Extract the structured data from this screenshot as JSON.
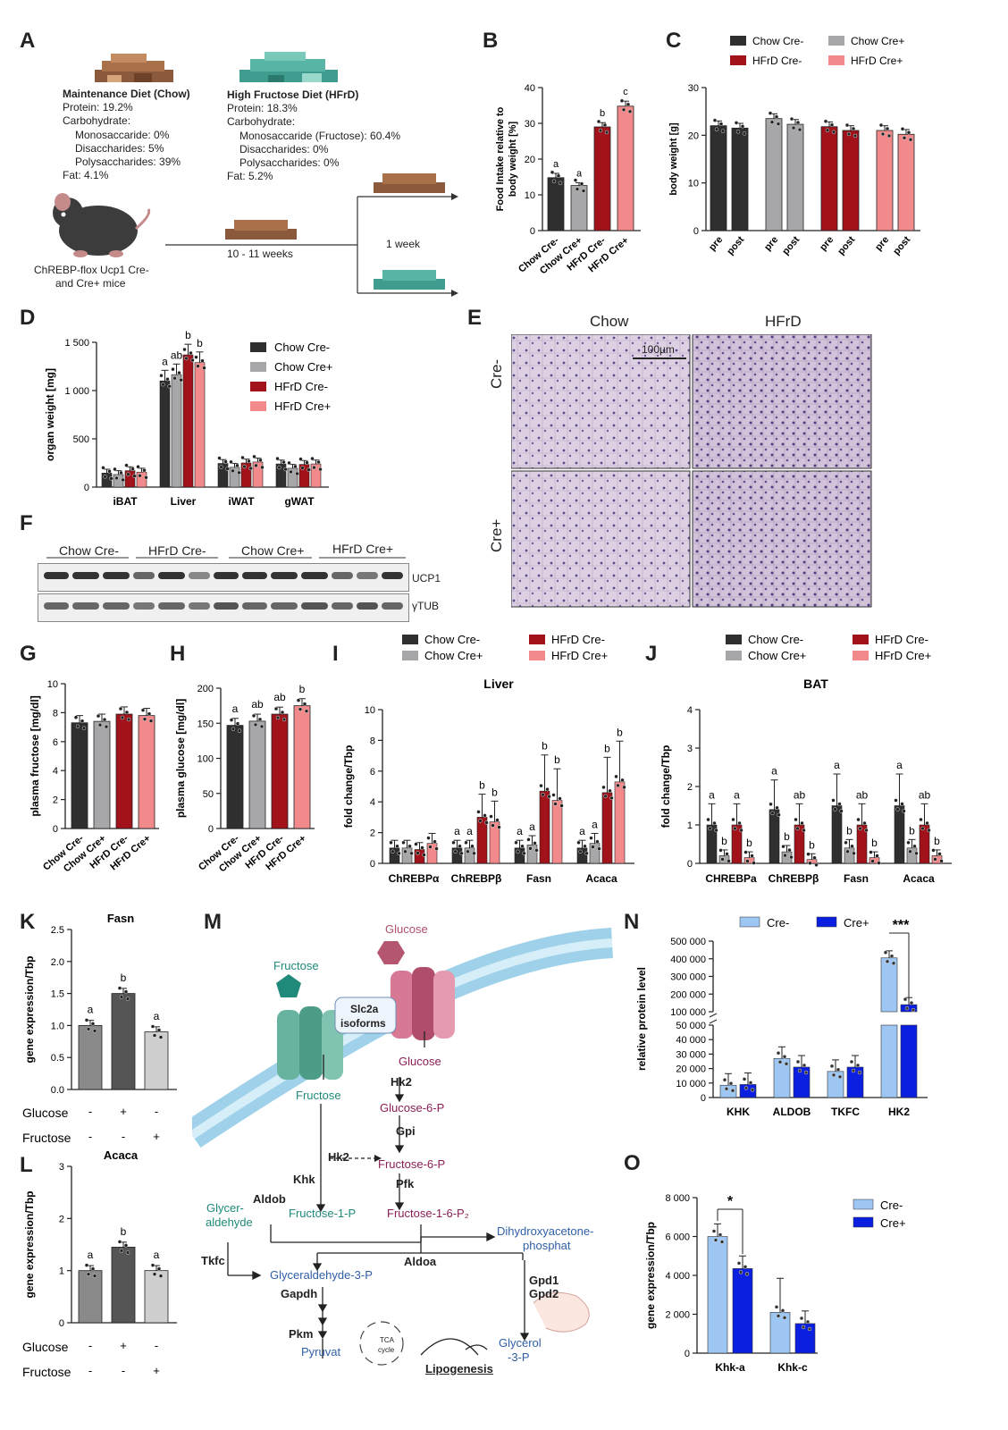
{
  "panels": {
    "A": "A",
    "B": "B",
    "C": "C",
    "D": "D",
    "E": "E",
    "F": "F",
    "G": "G",
    "H": "H",
    "I": "I",
    "J": "J",
    "K": "K",
    "L": "L",
    "M": "M",
    "N": "N",
    "O": "O"
  },
  "colors": {
    "chow_cre_minus": "#2f2f2f",
    "chow_cre_plus": "#a7a7a9",
    "hfrd_cre_minus": "#a1121a",
    "hfrd_cre_plus": "#f2898b",
    "cre_minus_light": "#9dc6f2",
    "cre_plus_blue": "#0b1fe0",
    "kl_bar1": "#8a8a8a",
    "kl_bar2": "#555555",
    "kl_bar3": "#cfcfcf"
  },
  "panelA": {
    "chow": {
      "title": "Maintenance Diet (Chow)",
      "lines": [
        "Protein: 19.2%",
        "Carbohydrate:",
        "Monosaccaride: 0%",
        "Disaccharides: 5%",
        "Polysaccharides: 39%",
        "Fat: 4.1%"
      ]
    },
    "hfrd": {
      "title": "High Fructose Diet (HFrD)",
      "lines": [
        "Protein: 18.3%",
        "Carbohydrate:",
        "Monosaccaride (Fructose): 60.4%",
        "Disaccharides: 0%",
        "Polysaccharides: 0%",
        "Fat: 5.2%"
      ]
    },
    "mouse_label_1": "ChREBP-flox Ucp1 Cre-",
    "mouse_label_2": "and Cre+ mice",
    "duration": "10 - 11 weeks",
    "week": "1 week"
  },
  "legend4": [
    "Chow Cre-",
    "Chow Cre+",
    "HFrD Cre-",
    "HFrD Cre+"
  ],
  "legend2": [
    "Cre-",
    "Cre+"
  ],
  "chart_data": [
    {
      "id": "B",
      "type": "bar",
      "categories": [
        "Chow Cre-",
        "Chow Cre+",
        "HFrD Cre-",
        "HFrD Cre+"
      ],
      "values": [
        14.8,
        12.6,
        29,
        34.8
      ],
      "errors": [
        1.2,
        0.8,
        1.2,
        1.4
      ],
      "letters": [
        "a",
        "a",
        "b",
        "c"
      ],
      "ylabel": "Food Intake relative to body weight [%]",
      "ylim": [
        0,
        40
      ],
      "yticks": [
        "0",
        "10",
        "20",
        "30",
        "40"
      ]
    },
    {
      "id": "C",
      "type": "bar",
      "categories": [
        "pre",
        "post",
        "pre",
        "post",
        "pre",
        "post",
        "pre",
        "post"
      ],
      "values": [
        22,
        21.5,
        23.5,
        22.3,
        21.8,
        21,
        21,
        20.2
      ],
      "groups": [
        "Chow Cre-",
        "Chow Cre+",
        "HFrD Cre-",
        "HFrD Cre+"
      ],
      "ylabel": "body weight [g]",
      "ylim": [
        0,
        30
      ],
      "yticks": [
        "0",
        "10",
        "20",
        "30"
      ]
    },
    {
      "id": "D",
      "type": "bar",
      "categories": [
        "iBAT",
        "Liver",
        "iWAT",
        "gWAT"
      ],
      "series": [
        {
          "name": "Chow Cre-",
          "values": [
            145,
            1100,
            245,
            240
          ]
        },
        {
          "name": "Chow Cre+",
          "values": [
            130,
            1165,
            205,
            195
          ]
        },
        {
          "name": "HFrD Cre-",
          "values": [
            170,
            1370,
            250,
            235
          ]
        },
        {
          "name": "HFrD Cre+",
          "values": [
            155,
            1290,
            260,
            240
          ]
        }
      ],
      "letters": {
        "Liver": [
          "a",
          "ab",
          "b",
          "b"
        ]
      },
      "ylabel": "organ weight [mg]",
      "ylim": [
        0,
        1500
      ],
      "yticks": [
        "0",
        "500",
        "1 000",
        "1 500"
      ]
    },
    {
      "id": "G",
      "type": "bar",
      "categories": [
        "Chow Cre-",
        "Chow Cre+",
        "HFrD Cre-",
        "HFrD Cre+"
      ],
      "values": [
        7.3,
        7.4,
        7.9,
        7.8
      ],
      "ylabel": "plasma fructose [mg/dl]",
      "ylim": [
        0,
        10
      ],
      "yticks": [
        "0",
        "2",
        "4",
        "6",
        "8",
        "10"
      ]
    },
    {
      "id": "H",
      "type": "bar",
      "categories": [
        "Chow Cre-",
        "Chow Cre+",
        "HFrD Cre-",
        "HFrD Cre+"
      ],
      "values": [
        147,
        153,
        163,
        175
      ],
      "letters": [
        "a",
        "ab",
        "ab",
        "b"
      ],
      "ylabel": "plasma glucose [mg/dl]",
      "ylim": [
        0,
        200
      ],
      "yticks": [
        "0",
        "50",
        "100",
        "150",
        "200"
      ]
    },
    {
      "id": "I",
      "type": "bar",
      "title": "Liver",
      "categories": [
        "ChREBPα",
        "ChREBPβ",
        "Fasn",
        "Acaca"
      ],
      "series": [
        {
          "name": "Chow Cre-",
          "values": [
            1,
            1,
            1,
            1
          ]
        },
        {
          "name": "Chow Cre+",
          "values": [
            1,
            1,
            1.2,
            1.3
          ]
        },
        {
          "name": "HFrD Cre-",
          "values": [
            0.9,
            3,
            4.7,
            4.6
          ]
        },
        {
          "name": "HFrD Cre+",
          "values": [
            1.3,
            2.7,
            4.1,
            5.3
          ]
        }
      ],
      "letters": {
        "ChREBPβ": [
          "a",
          "a",
          "b",
          "b"
        ],
        "Fasn": [
          "a",
          "a",
          "b",
          "b"
        ],
        "Acaca": [
          "a",
          "a",
          "b",
          "b"
        ]
      },
      "ylabel": "fold change/Tbp",
      "ylim": [
        0,
        10
      ],
      "yticks": [
        "0",
        "2",
        "4",
        "6",
        "8",
        "10"
      ]
    },
    {
      "id": "J",
      "type": "bar",
      "title": "BAT",
      "categories": [
        "CHREBPa",
        "ChREBPβ",
        "Fasn",
        "Acaca"
      ],
      "series": [
        {
          "name": "Chow Cre-",
          "values": [
            1,
            1.4,
            1.5,
            1.5
          ]
        },
        {
          "name": "Chow Cre+",
          "values": [
            0.2,
            0.3,
            0.4,
            0.4
          ]
        },
        {
          "name": "HFrD Cre-",
          "values": [
            1,
            1,
            1,
            1
          ]
        },
        {
          "name": "HFrD Cre+",
          "values": [
            0.15,
            0.1,
            0.15,
            0.2
          ]
        }
      ],
      "letters": {
        "CHREBPa": [
          "a",
          "b",
          "a",
          "b"
        ],
        "ChREBPβ": [
          "a",
          "b",
          "ab",
          "b"
        ],
        "Fasn": [
          "a",
          "b",
          "ab",
          "b"
        ],
        "Acaca": [
          "a",
          "b",
          "ab",
          "b"
        ]
      },
      "ylabel": "fold change/Tbp",
      "ylim": [
        0,
        4
      ],
      "yticks": [
        "0",
        "1",
        "2",
        "3",
        "4"
      ]
    },
    {
      "id": "K",
      "type": "bar",
      "title": "Fasn",
      "values": [
        1,
        1.5,
        0.9
      ],
      "letters": [
        "a",
        "b",
        "a"
      ],
      "ylabel": "gene expression/Tbp",
      "ylim": [
        0,
        2.5
      ],
      "yticks": [
        "0.0",
        "0.5",
        "1.0",
        "1.5",
        "2.0",
        "2.5"
      ],
      "rows": [
        {
          "label": "Glucose",
          "marks": [
            "-",
            "+",
            "-"
          ]
        },
        {
          "label": "Fructose",
          "marks": [
            "-",
            "-",
            "+"
          ]
        }
      ]
    },
    {
      "id": "L",
      "type": "bar",
      "title": "Acaca",
      "values": [
        1,
        1.45,
        1
      ],
      "letters": [
        "a",
        "b",
        "a"
      ],
      "ylabel": "gene expression/Tbp",
      "ylim": [
        0,
        3
      ],
      "yticks": [
        "0",
        "1",
        "2",
        "3"
      ],
      "rows": [
        {
          "label": "Glucose",
          "marks": [
            "-",
            "+",
            "-"
          ]
        },
        {
          "label": "Fructose",
          "marks": [
            "-",
            "-",
            "+"
          ]
        }
      ]
    },
    {
      "id": "N",
      "type": "bar",
      "categories": [
        "KHK",
        "ALDOB",
        "TKFC",
        "HK2"
      ],
      "series": [
        {
          "name": "Cre-",
          "values": [
            8500,
            27000,
            18000,
            405000
          ]
        },
        {
          "name": "Cre+",
          "values": [
            9000,
            21000,
            21000,
            140000
          ]
        }
      ],
      "significance": "***",
      "ylabel": "relative protein level",
      "yticks_low": [
        "0",
        "10 000",
        "20 000",
        "30 000",
        "40 000",
        "50 000"
      ],
      "yticks_high": [
        "100 000",
        "200 000",
        "300 000",
        "400 000",
        "500 000"
      ]
    },
    {
      "id": "O",
      "type": "bar",
      "categories": [
        "Khk-a",
        "Khk-c"
      ],
      "series": [
        {
          "name": "Cre-",
          "values": [
            6000,
            2100
          ]
        },
        {
          "name": "Cre+",
          "values": [
            4350,
            1520
          ]
        }
      ],
      "significance": "*",
      "ylabel": "gene expression/Tbp",
      "ylim": [
        0,
        8000
      ],
      "yticks": [
        "0",
        "2 000",
        "4 000",
        "6 000",
        "8 000"
      ]
    }
  ],
  "panelE": {
    "col1": "Chow",
    "col2": "HFrD",
    "row1": "Cre-",
    "row2": "Cre+",
    "scale": "100µm"
  },
  "panelF": {
    "groups": [
      "Chow Cre-",
      "HFrD Cre-",
      "Chow Cre+",
      "HFrD Cre+"
    ],
    "rows": [
      "UCP1",
      "γTUB"
    ]
  },
  "panelM": {
    "glucose": "Glucose",
    "fructose": "Fructose",
    "transporter_1": "Slc2a",
    "transporter_2": "isoforms",
    "fructose_in": "Fructose",
    "glucose_in": "Glucose",
    "hk2_a": "Hk2",
    "g6p": "Glucose-6-P",
    "gpi": "Gpi",
    "khk": "Khk",
    "hk2_b": "Hk2",
    "f6p": "Fructose-6-P",
    "pfk": "Pfk",
    "aldob": "Aldob",
    "glyceraldehyde_1": "Glycer-",
    "glyceraldehyde_2": "aldehyde",
    "f1p": "Fructose-1-P",
    "f16p": "Fructose-1-6-P₂",
    "dhap_1": "Dihydroxyacetone-",
    "dhap_2": "phosphat",
    "tkfc": "Tkfc",
    "aldoa": "Aldoa",
    "g3p": "Glyceraldehyde-3-P",
    "gapdh": "Gapdh",
    "gpd1": "Gpd1",
    "gpd2": "Gpd2",
    "pkm": "Pkm",
    "pyruvat": "Pyruvat",
    "tca_1": "TCA",
    "tca_2": "cycle",
    "glycerol_1": "Glycerol",
    "glycerol_2": "-3-P",
    "lipogenesis": "Lipogenesis"
  }
}
